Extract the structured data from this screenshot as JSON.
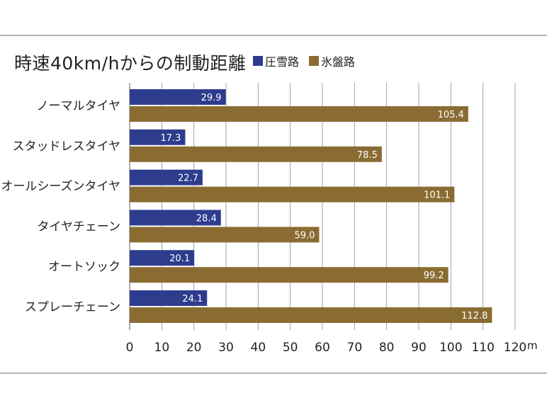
{
  "chart_data": {
    "type": "bar",
    "orientation": "horizontal",
    "title": "時速40km/hからの制動距離",
    "categories": [
      "ノーマルタイヤ",
      "スタッドレスタイヤ",
      "オールシーズンタイヤ",
      "タイヤチェーン",
      "オートソック",
      "スプレーチェーン"
    ],
    "series": [
      {
        "name": "圧雪路",
        "color": "#2e3c8e",
        "values": [
          29.9,
          17.3,
          22.7,
          28.4,
          20.1,
          24.1
        ],
        "labels": [
          "29.9",
          "17.3",
          "22.7",
          "28.4",
          "20.1",
          "24.1"
        ]
      },
      {
        "name": "氷盤路",
        "color": "#8a6c33",
        "values": [
          105.4,
          78.5,
          101.1,
          59.0,
          99.2,
          112.8
        ],
        "labels": [
          "105.4",
          "78.5",
          "101.1",
          "59.0",
          "99.2",
          "112.8"
        ]
      }
    ],
    "xlim": [
      0,
      120
    ],
    "xticks": [
      0,
      10,
      20,
      30,
      40,
      50,
      60,
      70,
      80,
      90,
      100,
      110,
      120
    ],
    "xunit": "m",
    "grid": true,
    "legend_position": "top, right of title"
  }
}
